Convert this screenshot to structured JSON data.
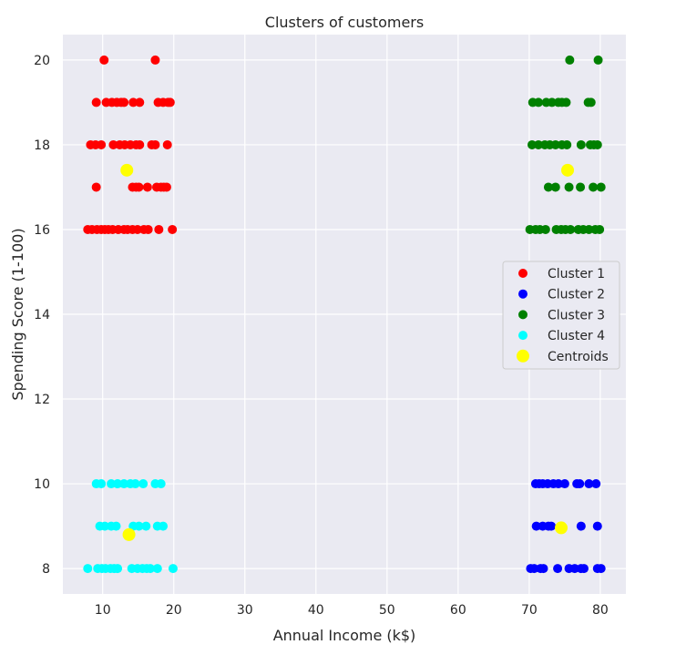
{
  "chart_data": {
    "type": "scatter",
    "title": "Clusters of customers",
    "xlabel": "Annual Income (k$)",
    "ylabel": "Spending Score (1-100)",
    "xlim": [
      4.4,
      83.6
    ],
    "ylim": [
      7.4,
      20.6
    ],
    "xticks": [
      10,
      20,
      30,
      40,
      50,
      60,
      70,
      80
    ],
    "yticks": [
      8,
      10,
      12,
      14,
      16,
      18,
      20
    ],
    "grid": true,
    "legend_position": "center-right",
    "series": [
      {
        "name": "Cluster 1",
        "color": "#ff0000",
        "points": [
          [
            10.2,
            20
          ],
          [
            17.4,
            20
          ],
          [
            9.1,
            19
          ],
          [
            10.5,
            19
          ],
          [
            11.3,
            19
          ],
          [
            12,
            19
          ],
          [
            12.6,
            19
          ],
          [
            13,
            19
          ],
          [
            14.3,
            19
          ],
          [
            15.2,
            19
          ],
          [
            17.8,
            19
          ],
          [
            18.5,
            19
          ],
          [
            19.2,
            19
          ],
          [
            19.5,
            19
          ],
          [
            8.3,
            18
          ],
          [
            9,
            18
          ],
          [
            9.8,
            18
          ],
          [
            11.5,
            18
          ],
          [
            12.4,
            18
          ],
          [
            13.1,
            18
          ],
          [
            13.9,
            18
          ],
          [
            14.7,
            18
          ],
          [
            15.2,
            18
          ],
          [
            16.9,
            18
          ],
          [
            17.4,
            18
          ],
          [
            19.1,
            18
          ],
          [
            9.1,
            17
          ],
          [
            14.2,
            17
          ],
          [
            14.7,
            17
          ],
          [
            15.1,
            17
          ],
          [
            16.3,
            17
          ],
          [
            17.6,
            17
          ],
          [
            18.2,
            17
          ],
          [
            18.6,
            17
          ],
          [
            19,
            17
          ],
          [
            7.9,
            16
          ],
          [
            8.5,
            16
          ],
          [
            9.2,
            16
          ],
          [
            9.8,
            16
          ],
          [
            10.3,
            16
          ],
          [
            10.8,
            16
          ],
          [
            11.4,
            16
          ],
          [
            12.2,
            16
          ],
          [
            13,
            16
          ],
          [
            13.5,
            16
          ],
          [
            14.2,
            16
          ],
          [
            14.9,
            16
          ],
          [
            15.8,
            16
          ],
          [
            16.4,
            16
          ],
          [
            17.9,
            16
          ],
          [
            19.8,
            16
          ]
        ]
      },
      {
        "name": "Cluster 2",
        "color": "#0000ff",
        "points": [
          [
            70.9,
            10
          ],
          [
            71.4,
            10
          ],
          [
            71.9,
            10
          ],
          [
            72.6,
            10
          ],
          [
            73.4,
            10
          ],
          [
            74.1,
            10
          ],
          [
            75,
            10
          ],
          [
            76.7,
            10
          ],
          [
            77.1,
            10
          ],
          [
            78.4,
            10
          ],
          [
            79.4,
            10
          ],
          [
            71,
            9
          ],
          [
            71.9,
            9
          ],
          [
            72.7,
            9
          ],
          [
            73.1,
            9
          ],
          [
            77.3,
            9
          ],
          [
            79.6,
            9
          ],
          [
            70.2,
            8
          ],
          [
            70.7,
            8
          ],
          [
            71.6,
            8
          ],
          [
            72,
            8
          ],
          [
            74,
            8
          ],
          [
            75.6,
            8
          ],
          [
            76.4,
            8
          ],
          [
            77.3,
            8
          ],
          [
            77.7,
            8
          ],
          [
            79.6,
            8
          ],
          [
            80.1,
            8
          ]
        ]
      },
      {
        "name": "Cluster 3",
        "color": "#008000",
        "points": [
          [
            75.7,
            20
          ],
          [
            79.7,
            20
          ],
          [
            70.5,
            19
          ],
          [
            71.3,
            19
          ],
          [
            72.4,
            19
          ],
          [
            73.2,
            19
          ],
          [
            74.1,
            19
          ],
          [
            74.6,
            19
          ],
          [
            75.2,
            19
          ],
          [
            78.3,
            19
          ],
          [
            78.7,
            19
          ],
          [
            70.4,
            18
          ],
          [
            71.3,
            18
          ],
          [
            72.2,
            18
          ],
          [
            72.9,
            18
          ],
          [
            73.7,
            18
          ],
          [
            74.6,
            18
          ],
          [
            75.3,
            18
          ],
          [
            77.3,
            18
          ],
          [
            78.6,
            18
          ],
          [
            79.1,
            18
          ],
          [
            79.6,
            18
          ],
          [
            72.7,
            17
          ],
          [
            73.7,
            17
          ],
          [
            75.6,
            17
          ],
          [
            77.2,
            17
          ],
          [
            79,
            17
          ],
          [
            80.1,
            17
          ],
          [
            70.1,
            16
          ],
          [
            70.9,
            16
          ],
          [
            71.5,
            16
          ],
          [
            72.3,
            16
          ],
          [
            73.8,
            16
          ],
          [
            74.5,
            16
          ],
          [
            75.1,
            16
          ],
          [
            75.8,
            16
          ],
          [
            76.9,
            16
          ],
          [
            77.6,
            16
          ],
          [
            78.4,
            16
          ],
          [
            79.3,
            16
          ],
          [
            79.9,
            16
          ]
        ]
      },
      {
        "name": "Cluster 4",
        "color": "#00ffff",
        "points": [
          [
            9.1,
            10
          ],
          [
            9.8,
            10
          ],
          [
            11.2,
            10
          ],
          [
            12.1,
            10
          ],
          [
            13,
            10
          ],
          [
            13.9,
            10
          ],
          [
            14.6,
            10
          ],
          [
            15.7,
            10
          ],
          [
            17.4,
            10
          ],
          [
            18.2,
            10
          ],
          [
            9.6,
            9
          ],
          [
            10.3,
            9
          ],
          [
            11.2,
            9
          ],
          [
            11.9,
            9
          ],
          [
            14.3,
            9
          ],
          [
            15.1,
            9
          ],
          [
            16.1,
            9
          ],
          [
            17.7,
            9
          ],
          [
            18.5,
            9
          ],
          [
            7.9,
            8
          ],
          [
            9.3,
            8
          ],
          [
            9.9,
            8
          ],
          [
            10.4,
            8
          ],
          [
            11.1,
            8
          ],
          [
            11.6,
            8
          ],
          [
            12.1,
            8
          ],
          [
            14.1,
            8
          ],
          [
            14.9,
            8
          ],
          [
            15.6,
            8
          ],
          [
            16.2,
            8
          ],
          [
            16.7,
            8
          ],
          [
            17.7,
            8
          ],
          [
            19.9,
            8
          ]
        ]
      },
      {
        "name": "Centroids",
        "color": "#ffff00",
        "points": [
          [
            13.4,
            17.4
          ],
          [
            75.4,
            17.4
          ],
          [
            13.7,
            8.8
          ],
          [
            74.5,
            8.96
          ]
        ]
      }
    ]
  }
}
